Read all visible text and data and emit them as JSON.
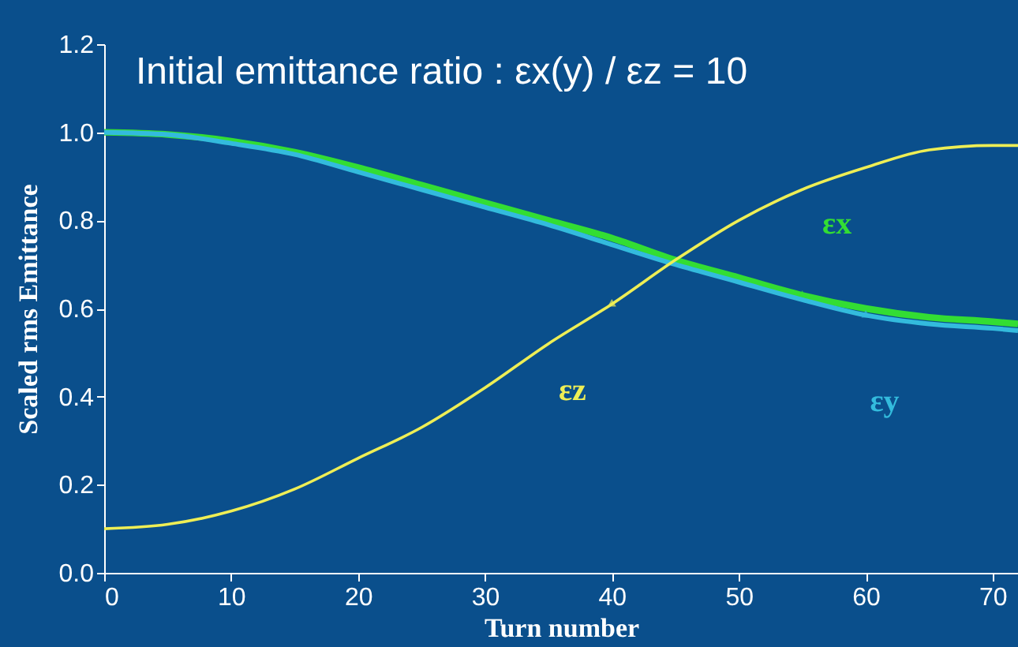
{
  "chart_data": {
    "type": "line",
    "title": "Initial emittance ratio : εx(y) / εz = 10",
    "xlabel": "Turn number",
    "ylabel": "Scaled rms Emittance",
    "x": [
      0,
      5,
      10,
      15,
      20,
      25,
      30,
      35,
      40,
      45,
      50,
      55,
      60,
      65,
      70,
      72
    ],
    "series": [
      {
        "name": "εx",
        "color": "#33dd33",
        "values": [
          1.0,
          0.995,
          0.98,
          0.955,
          0.92,
          0.88,
          0.84,
          0.8,
          0.76,
          0.71,
          0.67,
          0.63,
          0.6,
          0.58,
          0.57,
          0.565
        ]
      },
      {
        "name": "εy",
        "color": "#33bbdd",
        "values": [
          1.0,
          0.995,
          0.975,
          0.95,
          0.91,
          0.87,
          0.83,
          0.79,
          0.745,
          0.7,
          0.66,
          0.62,
          0.585,
          0.565,
          0.555,
          0.55
        ]
      },
      {
        "name": "εz",
        "color": "#eeee55",
        "values": [
          0.1,
          0.11,
          0.14,
          0.19,
          0.26,
          0.33,
          0.42,
          0.52,
          0.61,
          0.71,
          0.8,
          0.87,
          0.92,
          0.96,
          0.97,
          0.97
        ]
      }
    ],
    "xlim": [
      0,
      72
    ],
    "xticks": [
      0,
      10,
      20,
      30,
      40,
      50,
      60,
      70
    ],
    "ylim": [
      0,
      1.2
    ],
    "yticks": [
      {
        "value": 0,
        "label": "0.0"
      },
      0.2,
      0.4,
      0.6,
      0.8,
      {
        "value": 1,
        "label": "1.0"
      },
      1.2
    ],
    "grid": false,
    "marker": "none",
    "line_style": "solid"
  }
}
